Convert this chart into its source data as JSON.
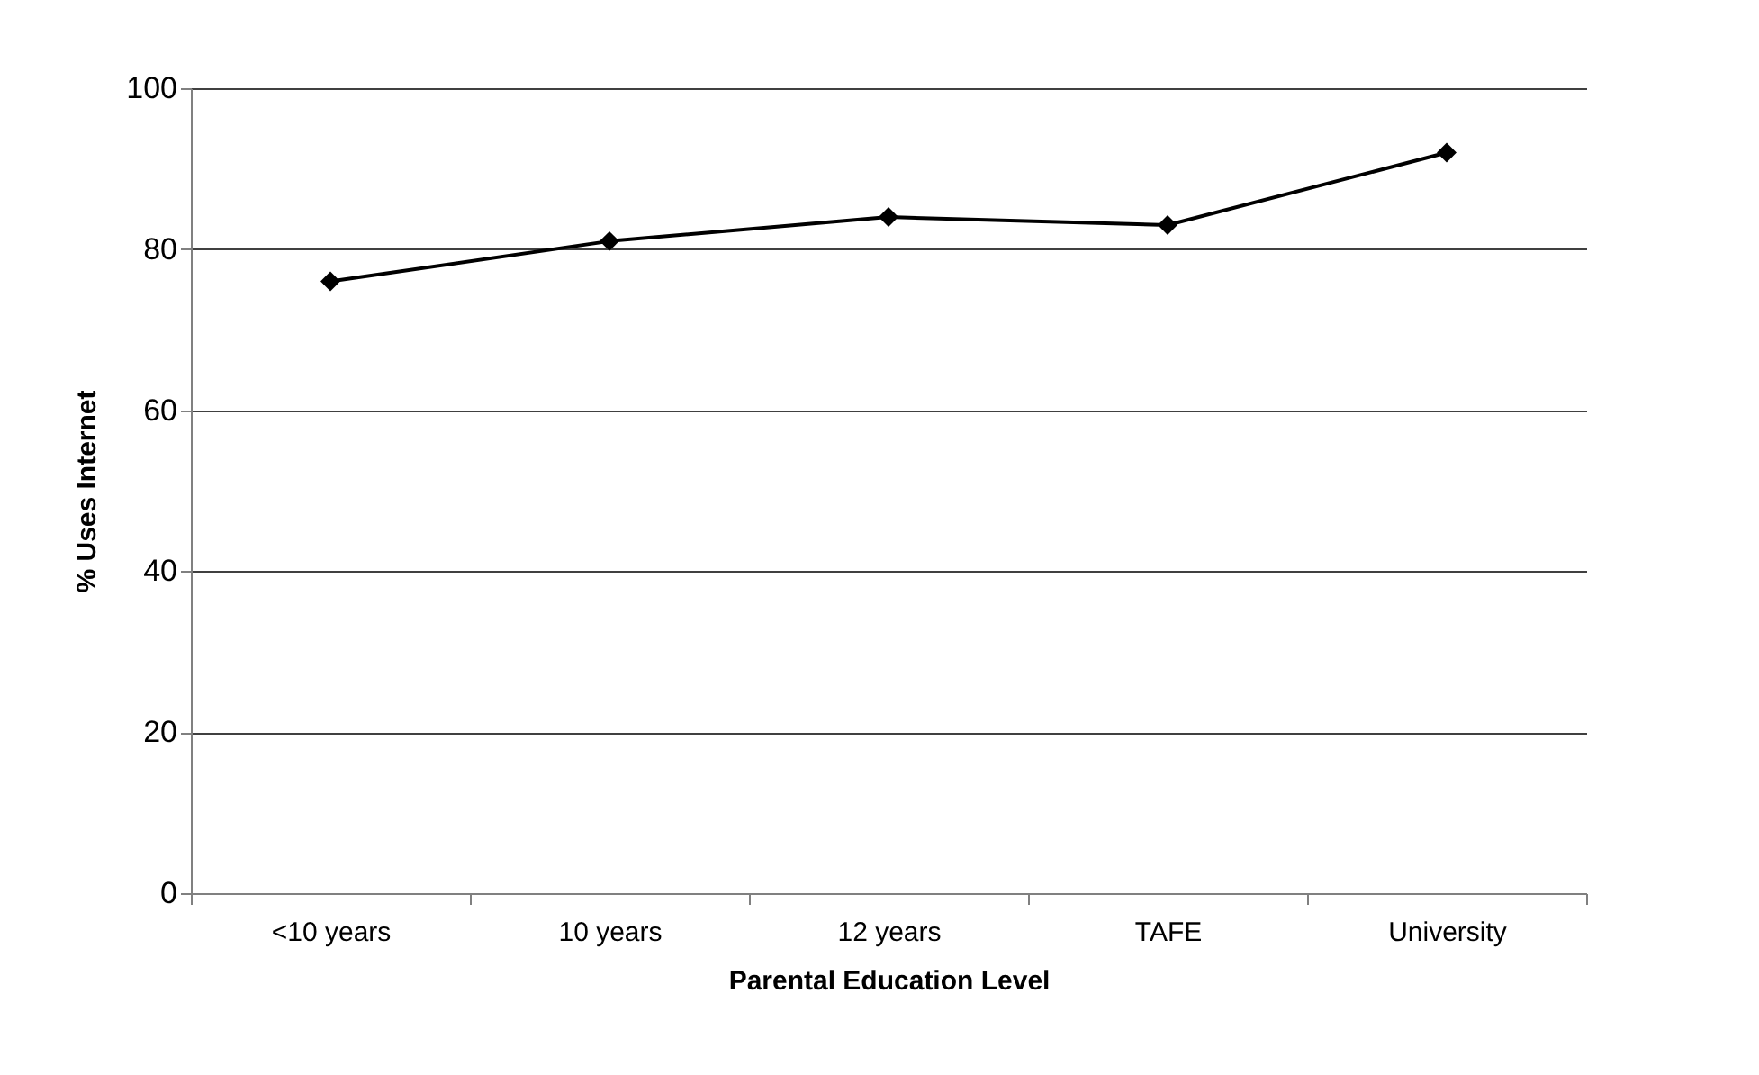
{
  "chart_data": {
    "type": "line",
    "xlabel": "Parental Education Level",
    "ylabel": "% Uses Internet",
    "categories": [
      "<10 years",
      "10 years",
      "12 years",
      "TAFE",
      "University"
    ],
    "series": [
      {
        "color": "#000000",
        "values": [
          76,
          81,
          84,
          83,
          92
        ]
      }
    ],
    "ylim": [
      0,
      100
    ],
    "yticks": [
      0,
      20,
      40,
      60,
      80,
      100
    ],
    "grid": "y",
    "marker": "diamond",
    "line_style": "solid"
  }
}
